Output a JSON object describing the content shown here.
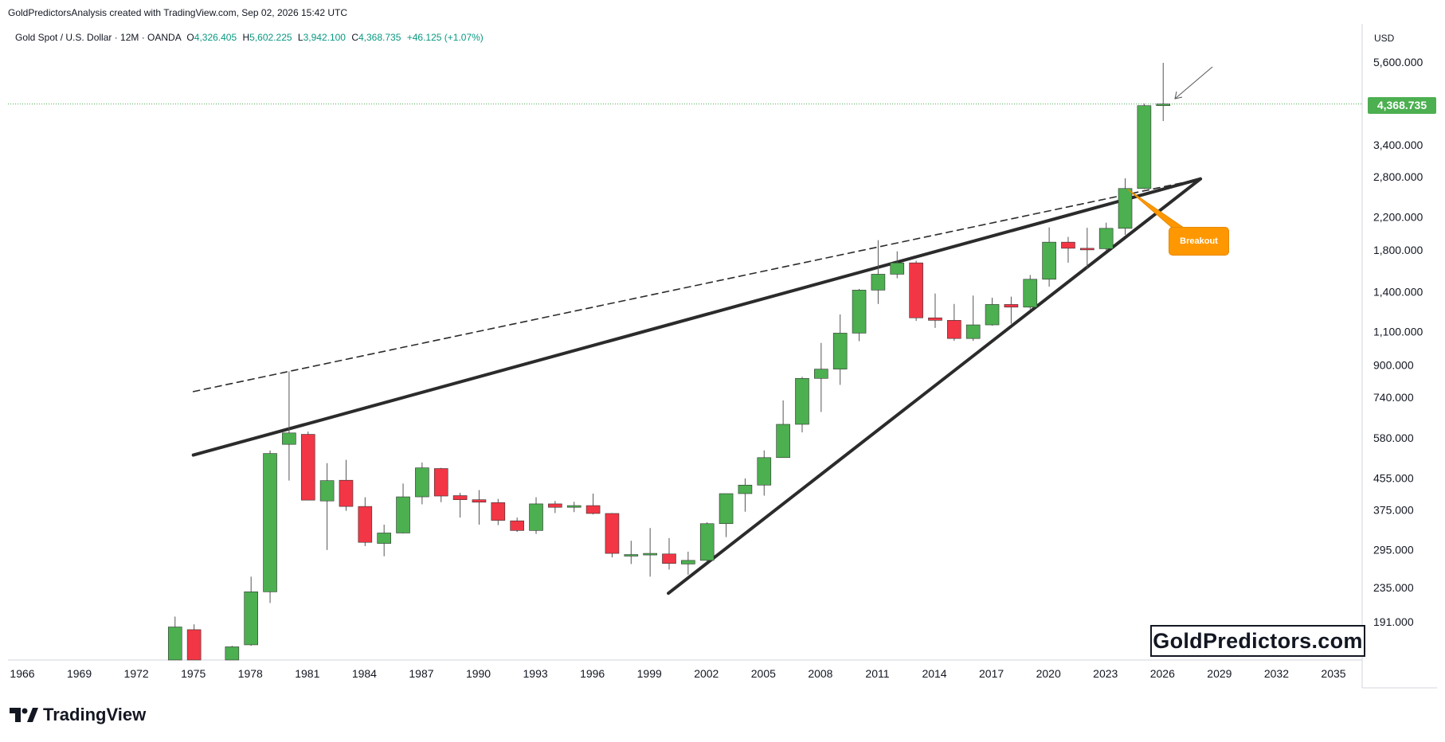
{
  "header": {
    "credit": "GoldPredictorsAnalysis created with TradingView.com, Sep 02, 2026 15:42 UTC",
    "symbol_desc": "Gold Spot / U.S. Dollar · 12M · OANDA",
    "open_label": "O",
    "open": "4,326.405",
    "high_label": "H",
    "high": "5,602.225",
    "low_label": "L",
    "low": "3,942.100",
    "close_label": "C",
    "close": "4,368.735",
    "change": "+46.125 (+1.07%)"
  },
  "price_axis": {
    "currency": "USD",
    "last_price": "4,368.735"
  },
  "annotation": {
    "breakout_label": "Breakout"
  },
  "branding": {
    "watermark": "GoldPredictors.com",
    "logo": "TradingView"
  },
  "colors": {
    "up": "#4caf50",
    "down": "#f23645",
    "wick": "#555555",
    "trend": "#2b2b2b",
    "callout": "#ff9800",
    "last_price_line": "#4caf50"
  },
  "chart_data": {
    "type": "candlestick",
    "scale": "log",
    "ylim": [
      150,
      6300
    ],
    "xlim": [
      1966,
      2037
    ],
    "x_ticks": [
      "1966",
      "1969",
      "1972",
      "1975",
      "1978",
      "1981",
      "1984",
      "1987",
      "1990",
      "1993",
      "1996",
      "1999",
      "2002",
      "2005",
      "2008",
      "2011",
      "2014",
      "2017",
      "2020",
      "2023",
      "2026",
      "2029",
      "2032",
      "2035"
    ],
    "y_ticks": [
      "5,600.000",
      "3,400.000",
      "2,800.000",
      "2,200.000",
      "1,800.000",
      "1,400.000",
      "1,100.000",
      "900.000",
      "740.000",
      "580.000",
      "455.000",
      "375.000",
      "295.000",
      "235.000",
      "191.000"
    ],
    "y_tick_values": [
      5600,
      3400,
      2800,
      2200,
      1800,
      1400,
      1100,
      900,
      740,
      580,
      455,
      375,
      295,
      235,
      191
    ],
    "candles": [
      {
        "year": 1974,
        "o": 146,
        "h": 198,
        "l": 140,
        "c": 186
      },
      {
        "year": 1975,
        "o": 183,
        "h": 189,
        "l": 140,
        "c": 140
      },
      {
        "year": 1977,
        "o": 147,
        "h": 166,
        "l": 140,
        "c": 165
      },
      {
        "year": 1978,
        "o": 167,
        "h": 252,
        "l": 166,
        "c": 230
      },
      {
        "year": 1979,
        "o": 230,
        "h": 540,
        "l": 215,
        "c": 530
      },
      {
        "year": 1980,
        "o": 560,
        "h": 870,
        "l": 450,
        "c": 600
      },
      {
        "year": 1981,
        "o": 595,
        "h": 605,
        "l": 400,
        "c": 400
      },
      {
        "year": 1982,
        "o": 398,
        "h": 500,
        "l": 296,
        "c": 450
      },
      {
        "year": 1983,
        "o": 451,
        "h": 510,
        "l": 375,
        "c": 385
      },
      {
        "year": 1984,
        "o": 385,
        "h": 407,
        "l": 303,
        "c": 310
      },
      {
        "year": 1985,
        "o": 308,
        "h": 345,
        "l": 285,
        "c": 328
      },
      {
        "year": 1986,
        "o": 328,
        "h": 442,
        "l": 327,
        "c": 408
      },
      {
        "year": 1987,
        "o": 408,
        "h": 502,
        "l": 390,
        "c": 486
      },
      {
        "year": 1988,
        "o": 484,
        "h": 486,
        "l": 395,
        "c": 410
      },
      {
        "year": 1989,
        "o": 411,
        "h": 418,
        "l": 360,
        "c": 401
      },
      {
        "year": 1990,
        "o": 401,
        "h": 425,
        "l": 345,
        "c": 395
      },
      {
        "year": 1991,
        "o": 394,
        "h": 403,
        "l": 344,
        "c": 354
      },
      {
        "year": 1992,
        "o": 353,
        "h": 360,
        "l": 330,
        "c": 333
      },
      {
        "year": 1993,
        "o": 333,
        "h": 407,
        "l": 326,
        "c": 391
      },
      {
        "year": 1994,
        "o": 391,
        "h": 398,
        "l": 370,
        "c": 383
      },
      {
        "year": 1995,
        "o": 383,
        "h": 396,
        "l": 372,
        "c": 387
      },
      {
        "year": 1996,
        "o": 387,
        "h": 416,
        "l": 367,
        "c": 369
      },
      {
        "year": 1997,
        "o": 369,
        "h": 370,
        "l": 283,
        "c": 290
      },
      {
        "year": 1998,
        "o": 288,
        "h": 313,
        "l": 272,
        "c": 288
      },
      {
        "year": 1999,
        "o": 288,
        "h": 338,
        "l": 252,
        "c": 290
      },
      {
        "year": 2000,
        "o": 289,
        "h": 318,
        "l": 263,
        "c": 273
      },
      {
        "year": 2001,
        "o": 272,
        "h": 293,
        "l": 255,
        "c": 278
      },
      {
        "year": 2002,
        "o": 278,
        "h": 350,
        "l": 276,
        "c": 347
      },
      {
        "year": 2003,
        "o": 347,
        "h": 416,
        "l": 320,
        "c": 416
      },
      {
        "year": 2004,
        "o": 416,
        "h": 456,
        "l": 373,
        "c": 438
      },
      {
        "year": 2005,
        "o": 438,
        "h": 540,
        "l": 411,
        "c": 517
      },
      {
        "year": 2006,
        "o": 517,
        "h": 730,
        "l": 520,
        "c": 632
      },
      {
        "year": 2007,
        "o": 632,
        "h": 842,
        "l": 602,
        "c": 834
      },
      {
        "year": 2008,
        "o": 834,
        "h": 1033,
        "l": 681,
        "c": 882
      },
      {
        "year": 2009,
        "o": 882,
        "h": 1227,
        "l": 802,
        "c": 1096
      },
      {
        "year": 2010,
        "o": 1096,
        "h": 1431,
        "l": 1044,
        "c": 1421
      },
      {
        "year": 2011,
        "o": 1421,
        "h": 1921,
        "l": 1307,
        "c": 1564
      },
      {
        "year": 2012,
        "o": 1564,
        "h": 1796,
        "l": 1526,
        "c": 1675
      },
      {
        "year": 2013,
        "o": 1675,
        "h": 1696,
        "l": 1180,
        "c": 1202
      },
      {
        "year": 2014,
        "o": 1202,
        "h": 1392,
        "l": 1131,
        "c": 1184
      },
      {
        "year": 2015,
        "o": 1184,
        "h": 1307,
        "l": 1046,
        "c": 1061
      },
      {
        "year": 2016,
        "o": 1061,
        "h": 1375,
        "l": 1046,
        "c": 1152
      },
      {
        "year": 2017,
        "o": 1152,
        "h": 1357,
        "l": 1146,
        "c": 1303
      },
      {
        "year": 2018,
        "o": 1303,
        "h": 1366,
        "l": 1160,
        "c": 1282
      },
      {
        "year": 2019,
        "o": 1282,
        "h": 1557,
        "l": 1266,
        "c": 1517
      },
      {
        "year": 2020,
        "o": 1517,
        "h": 2075,
        "l": 1451,
        "c": 1898
      },
      {
        "year": 2021,
        "o": 1898,
        "h": 1959,
        "l": 1677,
        "c": 1829
      },
      {
        "year": 2022,
        "o": 1829,
        "h": 2070,
        "l": 1614,
        "c": 1824
      },
      {
        "year": 2023,
        "o": 1824,
        "h": 2135,
        "l": 1804,
        "c": 2063
      },
      {
        "year": 2024,
        "o": 2063,
        "h": 2790,
        "l": 1984,
        "c": 2624
      },
      {
        "year": 2025,
        "o": 2624,
        "h": 4381,
        "l": 2614,
        "c": 4326
      },
      {
        "year": 2026,
        "o": 4326,
        "h": 5602,
        "l": 3942,
        "c": 4369
      }
    ],
    "trendlines": [
      {
        "name": "upper-resistance",
        "style": "solid",
        "from": {
          "year": 1975,
          "price": 525
        },
        "to": {
          "year": 2028,
          "price": 2780
        }
      },
      {
        "name": "upper-dashed",
        "style": "dashed",
        "from": {
          "year": 1975,
          "price": 770
        },
        "to": {
          "year": 2028,
          "price": 2780
        }
      },
      {
        "name": "lower-support",
        "style": "solid",
        "from": {
          "year": 2000,
          "price": 228
        },
        "to": {
          "year": 2028,
          "price": 2780
        }
      }
    ],
    "last_price": 4368.735
  }
}
